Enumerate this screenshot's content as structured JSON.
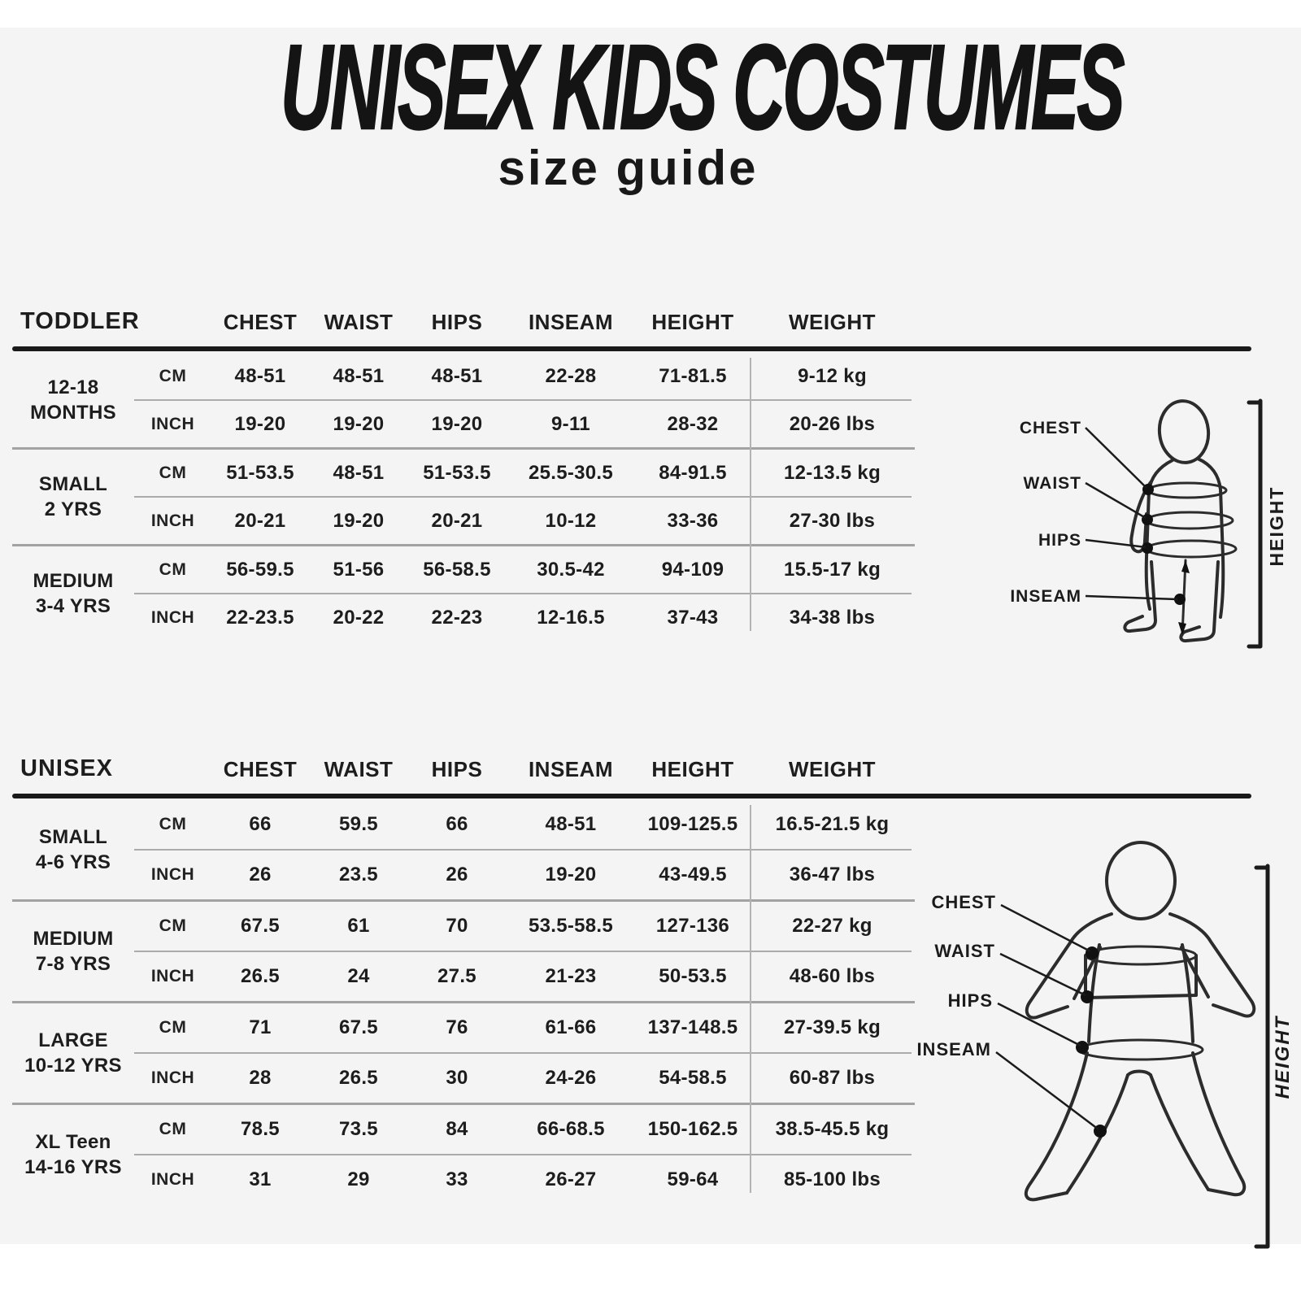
{
  "page": {
    "title": "UNISEX KIDS COSTUMES",
    "subtitle": "size guide"
  },
  "columns": [
    "CHEST",
    "WAIST",
    "HIPS",
    "INSEAM",
    "HEIGHT",
    "WEIGHT"
  ],
  "units": {
    "cm": "CM",
    "inch": "INCH"
  },
  "tables": [
    {
      "label": "TODDLER",
      "groups": [
        {
          "size_line1": "12-18",
          "size_line2": "MONTHS",
          "cm": [
            "48-51",
            "48-51",
            "48-51",
            "22-28",
            "71-81.5",
            "9-12 kg"
          ],
          "inch": [
            "19-20",
            "19-20",
            "19-20",
            "9-11",
            "28-32",
            "20-26 lbs"
          ]
        },
        {
          "size_line1": "SMALL",
          "size_line2": "2 YRS",
          "cm": [
            "51-53.5",
            "48-51",
            "51-53.5",
            "25.5-30.5",
            "84-91.5",
            "12-13.5 kg"
          ],
          "inch": [
            "20-21",
            "19-20",
            "20-21",
            "10-12",
            "33-36",
            "27-30 lbs"
          ]
        },
        {
          "size_line1": "MEDIUM",
          "size_line2": "3-4 YRS",
          "cm": [
            "56-59.5",
            "51-56",
            "56-58.5",
            "30.5-42",
            "94-109",
            "15.5-17 kg"
          ],
          "inch": [
            "22-23.5",
            "20-22",
            "22-23",
            "12-16.5",
            "37-43",
            "34-38 lbs"
          ]
        }
      ]
    },
    {
      "label": "UNISEX",
      "groups": [
        {
          "size_line1": "SMALL",
          "size_line2": "4-6 YRS",
          "cm": [
            "66",
            "59.5",
            "66",
            "48-51",
            "109-125.5",
            "16.5-21.5 kg"
          ],
          "inch": [
            "26",
            "23.5",
            "26",
            "19-20",
            "43-49.5",
            "36-47 lbs"
          ]
        },
        {
          "size_line1": "MEDIUM",
          "size_line2": "7-8 YRS",
          "cm": [
            "67.5",
            "61",
            "70",
            "53.5-58.5",
            "127-136",
            "22-27 kg"
          ],
          "inch": [
            "26.5",
            "24",
            "27.5",
            "21-23",
            "50-53.5",
            "48-60 lbs"
          ]
        },
        {
          "size_line1": "LARGE",
          "size_line2": "10-12 YRS",
          "cm": [
            "71",
            "67.5",
            "76",
            "61-66",
            "137-148.5",
            "27-39.5 kg"
          ],
          "inch": [
            "28",
            "26.5",
            "30",
            "24-26",
            "54-58.5",
            "60-87 lbs"
          ]
        },
        {
          "size_line1": "XL Teen",
          "size_line2": "14-16 YRS",
          "cm": [
            "78.5",
            "73.5",
            "84",
            "66-68.5",
            "150-162.5",
            "38.5-45.5 kg"
          ],
          "inch": [
            "31",
            "29",
            "33",
            "26-27",
            "59-64",
            "85-100 lbs"
          ]
        }
      ]
    }
  ],
  "figures": [
    {
      "name": "toddler",
      "labels": {
        "chest": "CHEST",
        "waist": "WAIST",
        "hips": "HIPS",
        "inseam": "INSEAM"
      },
      "height_label": "HEIGHT"
    },
    {
      "name": "child",
      "labels": {
        "chest": "CHEST",
        "waist": "WAIST",
        "hips": "HIPS",
        "inseam": "INSEAM"
      },
      "height_label": "HEIGHT"
    }
  ],
  "colors": {
    "background": "#f4f4f4",
    "text": "#1d1d1d",
    "rule_strong": "#1a1a1a",
    "rule_soft": "#a2a2a2"
  }
}
